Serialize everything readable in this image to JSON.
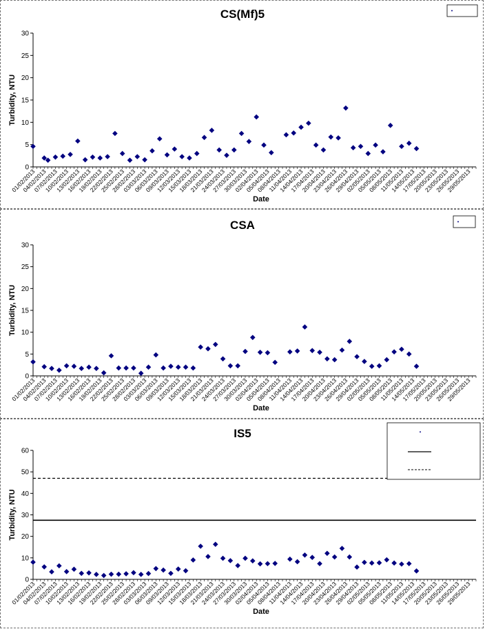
{
  "chart_data": [
    {
      "type": "scatter",
      "title": "CS(Mf)5",
      "xlabel": "Date",
      "ylabel": "Turbidity, NTU",
      "ylim": [
        0,
        30
      ],
      "yticks": [
        0,
        5,
        10,
        15,
        20,
        25,
        30
      ],
      "x_start": "01/02/2013",
      "x_end": "31/05/2013",
      "x_tick_labels": [
        "01/02/2013",
        "04/02/2013",
        "07/02/2013",
        "10/02/2013",
        "13/02/2013",
        "16/02/2013",
        "19/02/2013",
        "22/02/2013",
        "25/02/2013",
        "28/02/2013",
        "03/03/2013",
        "06/03/2013",
        "09/03/2013",
        "12/03/2013",
        "15/03/2013",
        "18/03/2013",
        "21/03/2013",
        "24/03/2013",
        "27/03/2013",
        "30/03/2013",
        "02/04/2013",
        "05/04/2013",
        "08/04/2013",
        "11/04/2013",
        "14/04/2013",
        "17/04/2013",
        "20/04/2013",
        "23/04/2013",
        "26/04/2013",
        "29/04/2013",
        "02/05/2013",
        "05/05/2013",
        "08/05/2013",
        "11/05/2013",
        "14/05/2013",
        "17/05/2013",
        "20/05/2013",
        "23/05/2013",
        "26/05/2013",
        "29/05/2013"
      ],
      "series": [
        {
          "name": "CS(Mf)5",
          "color": "#000080",
          "marker": "diamond",
          "points": [
            [
              "01/02/2013",
              4.6
            ],
            [
              "04/02/2013",
              2.0
            ],
            [
              "05/02/2013",
              1.5
            ],
            [
              "07/02/2013",
              2.2
            ],
            [
              "09/02/2013",
              2.4
            ],
            [
              "11/02/2013",
              2.8
            ],
            [
              "13/02/2013",
              5.8
            ],
            [
              "15/02/2013",
              1.6
            ],
            [
              "17/02/2013",
              2.2
            ],
            [
              "19/02/2013",
              2.0
            ],
            [
              "21/02/2013",
              2.3
            ],
            [
              "23/02/2013",
              7.5
            ],
            [
              "25/02/2013",
              3.0
            ],
            [
              "27/02/2013",
              1.5
            ],
            [
              "01/03/2013",
              2.3
            ],
            [
              "03/03/2013",
              1.6
            ],
            [
              "05/03/2013",
              3.6
            ],
            [
              "07/03/2013",
              6.3
            ],
            [
              "09/03/2013",
              2.7
            ],
            [
              "11/03/2013",
              4.0
            ],
            [
              "13/03/2013",
              2.3
            ],
            [
              "15/03/2013",
              2.0
            ],
            [
              "17/03/2013",
              3.0
            ],
            [
              "19/03/2013",
              6.6
            ],
            [
              "21/03/2013",
              8.2
            ],
            [
              "23/03/2013",
              3.8
            ],
            [
              "25/03/2013",
              2.6
            ],
            [
              "27/03/2013",
              3.8
            ],
            [
              "29/03/2013",
              7.5
            ],
            [
              "31/03/2013",
              5.7
            ],
            [
              "02/04/2013",
              11.2
            ],
            [
              "04/04/2013",
              4.9
            ],
            [
              "06/04/2013",
              3.2
            ],
            [
              "10/04/2013",
              7.2
            ],
            [
              "12/04/2013",
              7.6
            ],
            [
              "14/04/2013",
              8.9
            ],
            [
              "16/04/2013",
              9.8
            ],
            [
              "18/04/2013",
              4.9
            ],
            [
              "20/04/2013",
              3.8
            ],
            [
              "22/04/2013",
              6.7
            ],
            [
              "24/04/2013",
              6.5
            ],
            [
              "26/04/2013",
              13.2
            ],
            [
              "28/04/2013",
              4.3
            ],
            [
              "30/04/2013",
              4.6
            ],
            [
              "02/05/2013",
              3.0
            ],
            [
              "04/05/2013",
              4.9
            ],
            [
              "06/05/2013",
              3.4
            ],
            [
              "08/05/2013",
              9.3
            ],
            [
              "11/05/2013",
              4.6
            ],
            [
              "13/05/2013",
              5.3
            ],
            [
              "15/05/2013",
              4.1
            ]
          ]
        }
      ]
    },
    {
      "type": "scatter",
      "title": "CSA",
      "xlabel": "Date",
      "ylabel": "Turbidity, NTU",
      "ylim": [
        0,
        30
      ],
      "yticks": [
        0,
        5,
        10,
        15,
        20,
        25,
        30
      ],
      "x_start": "01/02/2013",
      "x_end": "31/05/2013",
      "x_tick_labels": [
        "01/02/2013",
        "04/02/2013",
        "07/02/2013",
        "10/02/2013",
        "13/02/2013",
        "16/02/2013",
        "19/02/2013",
        "22/02/2013",
        "25/02/2013",
        "28/02/2013",
        "03/03/2013",
        "06/03/2013",
        "09/03/2013",
        "12/03/2013",
        "15/03/2013",
        "18/03/2013",
        "21/03/2013",
        "24/03/2013",
        "27/03/2013",
        "30/03/2013",
        "02/04/2013",
        "05/04/2013",
        "08/04/2013",
        "11/04/2013",
        "14/04/2013",
        "17/04/2013",
        "20/04/2013",
        "23/04/2013",
        "26/04/2013",
        "29/04/2013",
        "02/05/2013",
        "05/05/2013",
        "08/05/2013",
        "11/05/2013",
        "14/05/2013",
        "17/05/2013",
        "20/05/2013",
        "23/05/2013",
        "26/05/2013",
        "29/05/2013"
      ],
      "series": [
        {
          "name": "CSA",
          "color": "#000080",
          "marker": "diamond",
          "points": [
            [
              "01/02/2013",
              3.2
            ],
            [
              "04/02/2013",
              2.1
            ],
            [
              "06/02/2013",
              1.7
            ],
            [
              "08/02/2013",
              1.3
            ],
            [
              "10/02/2013",
              2.3
            ],
            [
              "12/02/2013",
              2.2
            ],
            [
              "14/02/2013",
              1.7
            ],
            [
              "16/02/2013",
              2.0
            ],
            [
              "18/02/2013",
              1.7
            ],
            [
              "20/02/2013",
              0.7
            ],
            [
              "22/02/2013",
              4.6
            ],
            [
              "24/02/2013",
              1.8
            ],
            [
              "26/02/2013",
              1.8
            ],
            [
              "28/02/2013",
              1.8
            ],
            [
              "02/03/2013",
              0.6
            ],
            [
              "04/03/2013",
              2.0
            ],
            [
              "06/03/2013",
              4.8
            ],
            [
              "08/03/2013",
              1.8
            ],
            [
              "10/03/2013",
              2.2
            ],
            [
              "12/03/2013",
              2.0
            ],
            [
              "14/03/2013",
              2.0
            ],
            [
              "16/03/2013",
              1.8
            ],
            [
              "18/03/2013",
              6.6
            ],
            [
              "20/03/2013",
              6.2
            ],
            [
              "22/03/2013",
              7.2
            ],
            [
              "24/03/2013",
              3.9
            ],
            [
              "26/03/2013",
              2.3
            ],
            [
              "28/03/2013",
              2.3
            ],
            [
              "30/03/2013",
              5.6
            ],
            [
              "01/04/2013",
              8.8
            ],
            [
              "03/04/2013",
              5.4
            ],
            [
              "05/04/2013",
              5.3
            ],
            [
              "07/04/2013",
              3.1
            ],
            [
              "11/04/2013",
              5.5
            ],
            [
              "13/04/2013",
              5.7
            ],
            [
              "15/04/2013",
              11.2
            ],
            [
              "17/04/2013",
              5.8
            ],
            [
              "19/04/2013",
              5.4
            ],
            [
              "21/04/2013",
              3.9
            ],
            [
              "23/04/2013",
              3.7
            ],
            [
              "25/04/2013",
              5.9
            ],
            [
              "27/04/2013",
              7.9
            ],
            [
              "29/04/2013",
              4.4
            ],
            [
              "01/05/2013",
              3.3
            ],
            [
              "03/05/2013",
              2.2
            ],
            [
              "05/05/2013",
              2.3
            ],
            [
              "07/05/2013",
              3.7
            ],
            [
              "09/05/2013",
              5.5
            ],
            [
              "11/05/2013",
              6.1
            ],
            [
              "13/05/2013",
              5.0
            ],
            [
              "15/05/2013",
              2.2
            ]
          ]
        }
      ]
    },
    {
      "type": "scatter",
      "title": "IS5",
      "xlabel": "Date",
      "ylabel": "Turbidity, NTU",
      "ylim": [
        0,
        60
      ],
      "yticks": [
        0,
        10,
        20,
        30,
        40,
        50,
        60
      ],
      "x_start": "01/02/2013",
      "x_end": "31/05/2013",
      "x_tick_labels": [
        "01/02/2013",
        "04/02/2013",
        "07/02/2013",
        "10/02/2013",
        "13/02/2013",
        "16/02/2013",
        "19/02/2013",
        "22/02/2013",
        "25/02/2013",
        "28/02/2013",
        "03/03/2013",
        "06/03/2013",
        "09/03/2013",
        "12/03/2013",
        "15/03/2013",
        "18/03/2013",
        "21/03/2013",
        "24/03/2013",
        "27/03/2013",
        "30/03/2013",
        "02/04/2013",
        "05/04/2013",
        "08/04/2013",
        "11/04/2013",
        "14/04/2013",
        "17/04/2013",
        "20/04/2013",
        "23/04/2013",
        "26/04/2013",
        "29/04/2013",
        "02/05/2013",
        "05/05/2013",
        "08/05/2013",
        "11/05/2013",
        "14/05/2013",
        "17/05/2013",
        "20/05/2013",
        "23/05/2013",
        "26/05/2013",
        "29/05/2013"
      ],
      "reference_lines": [
        {
          "value": 27.5,
          "style": "solid"
        },
        {
          "value": 47,
          "style": "dashed"
        }
      ],
      "series": [
        {
          "name": "IS5",
          "color": "#000080",
          "marker": "diamond",
          "points": [
            [
              "01/02/2013",
              8.0
            ],
            [
              "04/02/2013",
              5.8
            ],
            [
              "06/02/2013",
              3.5
            ],
            [
              "08/02/2013",
              6.3
            ],
            [
              "10/02/2013",
              3.6
            ],
            [
              "12/02/2013",
              4.7
            ],
            [
              "14/02/2013",
              2.8
            ],
            [
              "16/02/2013",
              3.0
            ],
            [
              "18/02/2013",
              2.3
            ],
            [
              "20/02/2013",
              1.8
            ],
            [
              "22/02/2013",
              2.4
            ],
            [
              "24/02/2013",
              2.4
            ],
            [
              "26/02/2013",
              2.6
            ],
            [
              "28/02/2013",
              3.1
            ],
            [
              "02/03/2013",
              2.3
            ],
            [
              "04/03/2013",
              2.7
            ],
            [
              "06/03/2013",
              5.0
            ],
            [
              "08/03/2013",
              4.3
            ],
            [
              "10/03/2013",
              2.8
            ],
            [
              "12/03/2013",
              4.8
            ],
            [
              "14/03/2013",
              4.0
            ],
            [
              "16/03/2013",
              9.0
            ],
            [
              "18/03/2013",
              15.4
            ],
            [
              "20/03/2013",
              10.6
            ],
            [
              "22/03/2013",
              16.3
            ],
            [
              "24/03/2013",
              9.8
            ],
            [
              "26/03/2013",
              8.7
            ],
            [
              "28/03/2013",
              6.4
            ],
            [
              "30/03/2013",
              9.8
            ],
            [
              "01/04/2013",
              8.6
            ],
            [
              "03/04/2013",
              7.2
            ],
            [
              "05/04/2013",
              7.3
            ],
            [
              "07/04/2013",
              7.4
            ],
            [
              "11/04/2013",
              9.4
            ],
            [
              "13/04/2013",
              8.2
            ],
            [
              "15/04/2013",
              11.3
            ],
            [
              "17/04/2013",
              10.2
            ],
            [
              "19/04/2013",
              7.3
            ],
            [
              "21/04/2013",
              12.1
            ],
            [
              "23/04/2013",
              10.4
            ],
            [
              "25/04/2013",
              14.4
            ],
            [
              "27/04/2013",
              10.4
            ],
            [
              "29/04/2013",
              5.7
            ],
            [
              "01/05/2013",
              7.9
            ],
            [
              "03/05/2013",
              7.6
            ],
            [
              "05/05/2013",
              7.7
            ],
            [
              "07/05/2013",
              9.1
            ],
            [
              "09/05/2013",
              7.6
            ],
            [
              "11/05/2013",
              7.1
            ],
            [
              "13/05/2013",
              7.3
            ],
            [
              "15/05/2013",
              3.9
            ]
          ]
        }
      ]
    }
  ]
}
